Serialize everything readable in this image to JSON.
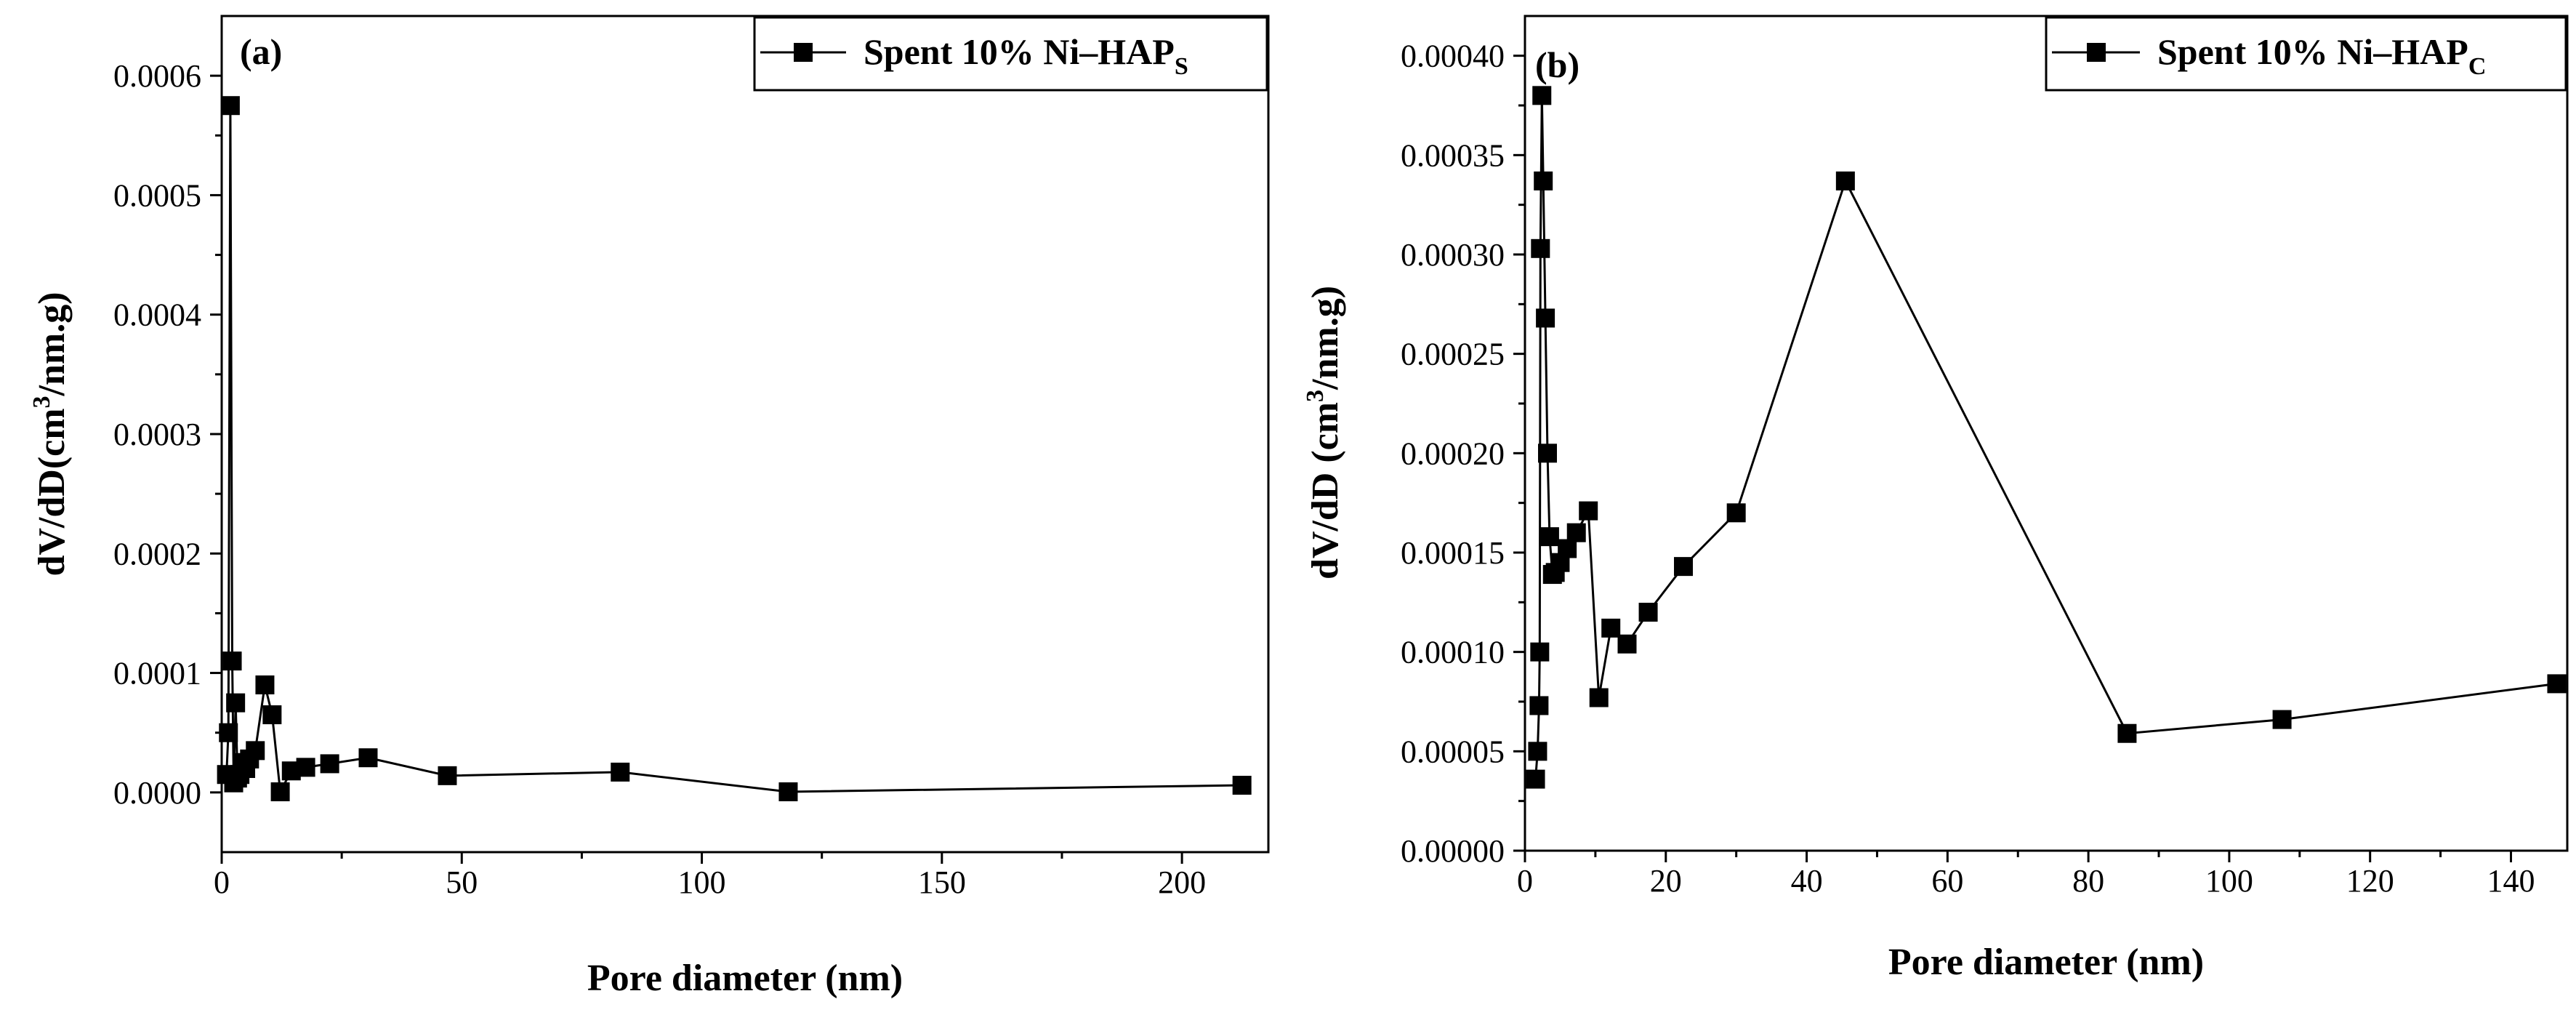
{
  "chart_data": [
    {
      "type": "line",
      "panel_label": "(a)",
      "legend": {
        "name": "Spent 10% Ni–HAP",
        "subscript": "S"
      },
      "xlabel": "Pore diameter (nm)",
      "ylabel_parts": {
        "before": "dV/dD(cm",
        "sup": "3",
        "after": "/nm.g)"
      },
      "xlim": [
        0,
        218
      ],
      "ylim": [
        -5e-05,
        0.00065
      ],
      "xticks": [
        0,
        50,
        100,
        150,
        200
      ],
      "xtick_labels": [
        "0",
        "50",
        "100",
        "150",
        "200"
      ],
      "yticks": [
        0,
        0.0001,
        0.0002,
        0.0003,
        0.0004,
        0.0005,
        0.0006
      ],
      "ytick_labels": [
        "0.0000",
        "0.0001",
        "0.0002",
        "0.0003",
        "0.0004",
        "0.0005",
        "0.0006"
      ],
      "series": [
        {
          "name": "Spent 10% Ni–HAPS",
          "x": [
            1.0,
            1.4,
            1.8,
            2.2,
            2.5,
            2.9,
            3.3,
            3.8,
            4.3,
            5.0,
            5.8,
            7.0,
            9.0,
            10.5,
            12.2,
            14.5,
            17.5,
            22.5,
            30.5,
            47.0,
            83.0,
            118.0,
            212.5
          ],
          "y": [
            1.5e-05,
            5e-05,
            0.000575,
            0.00011,
            8e-06,
            7.5e-05,
            1.2e-05,
            1.5e-05,
            2.5e-05,
            2e-05,
            2.8e-05,
            3.5e-05,
            9e-05,
            6.5e-05,
            5e-07,
            1.8e-05,
            2.1e-05,
            2.4e-05,
            2.9e-05,
            1.4e-05,
            1.7e-05,
            5e-07,
            6e-06
          ]
        }
      ]
    },
    {
      "type": "line",
      "panel_label": "(b)",
      "legend": {
        "name": "Spent 10% Ni–HAP",
        "subscript": "C"
      },
      "xlabel": "Pore diameter (nm)",
      "ylabel_parts": {
        "before": "dV/dD (cm",
        "sup": "3",
        "after": "/nm.g)"
      },
      "xlim": [
        0,
        148
      ],
      "ylim": [
        0,
        0.00042
      ],
      "xticks": [
        0,
        20,
        40,
        60,
        80,
        100,
        120,
        140
      ],
      "xtick_labels": [
        "0",
        "20",
        "40",
        "60",
        "80",
        "100",
        "120",
        "140"
      ],
      "yticks": [
        0,
        5e-05,
        0.0001,
        0.00015,
        0.0002,
        0.00025,
        0.0003,
        0.00035,
        0.0004
      ],
      "ytick_labels": [
        "0.00000",
        "0.00005",
        "0.00010",
        "0.00015",
        "0.00020",
        "0.00025",
        "0.00030",
        "0.00035",
        "0.00040"
      ],
      "series": [
        {
          "name": "Spent 10% Ni–HAPC",
          "x": [
            1.5,
            1.8,
            2.0,
            2.1,
            2.2,
            2.4,
            2.6,
            2.9,
            3.2,
            3.5,
            3.9,
            4.3,
            5.0,
            6.0,
            7.3,
            9.0,
            10.5,
            12.2,
            14.5,
            17.5,
            22.5,
            30.0,
            45.5,
            85.5,
            107.5,
            146.5
          ],
          "y": [
            3.6e-05,
            5e-05,
            7.3e-05,
            0.0001,
            0.000303,
            0.00038,
            0.000337,
            0.000268,
            0.0002,
            0.000158,
            0.000139,
            0.00014,
            0.000145,
            0.000152,
            0.00016,
            0.000171,
            7.7e-05,
            0.000112,
            0.000104,
            0.00012,
            0.000143,
            0.00017,
            0.000337,
            5.9e-05,
            6.6e-05,
            8.4e-05
          ]
        }
      ]
    }
  ]
}
